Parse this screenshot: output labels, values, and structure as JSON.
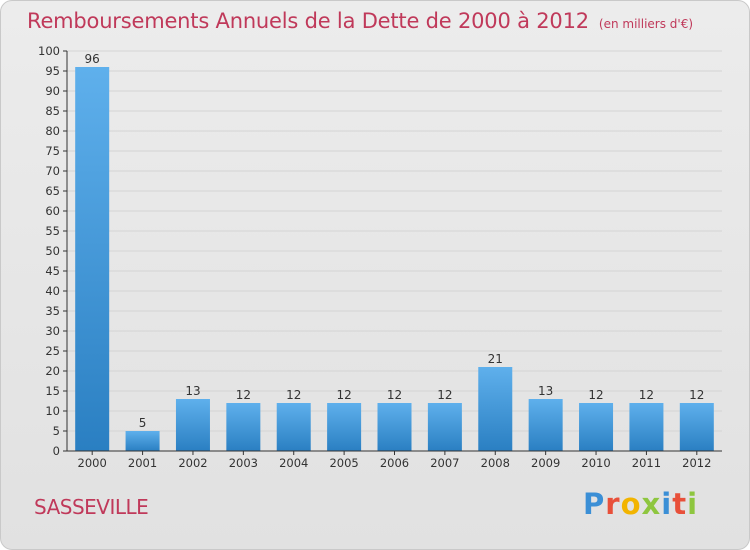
{
  "header": {
    "title": "Remboursements Annuels de la Dette de 2000 à 2012",
    "subtitle": "(en milliers d'€)"
  },
  "footer": {
    "commune": "SASSEVILLE",
    "logo_text": "Proxiti",
    "logo_letters": [
      {
        "char": "P",
        "color": "#3b8fd6"
      },
      {
        "char": "r",
        "color": "#e8503a"
      },
      {
        "char": "o",
        "color": "#f2b400"
      },
      {
        "char": "x",
        "color": "#8ec63f"
      },
      {
        "char": "i",
        "color": "#3b8fd6"
      },
      {
        "char": "t",
        "color": "#e8503a"
      },
      {
        "char": "i",
        "color": "#8ec63f"
      }
    ]
  },
  "colors": {
    "title": "#c0395a",
    "bar_top": "#5fb0ec",
    "bar_bottom": "#2a7fc2",
    "grid": "#d4d4d4",
    "axis": "#333333"
  },
  "chart_data": {
    "type": "bar",
    "title": "Remboursements Annuels de la Dette de 2000 à 2012",
    "subtitle": "(en milliers d'€)",
    "xlabel": "",
    "ylabel": "",
    "categories": [
      "2000",
      "2001",
      "2002",
      "2003",
      "2004",
      "2005",
      "2006",
      "2007",
      "2008",
      "2009",
      "2010",
      "2011",
      "2012"
    ],
    "values": [
      96,
      5,
      13,
      12,
      12,
      12,
      12,
      12,
      21,
      13,
      12,
      12,
      12
    ],
    "ylim": [
      0,
      100
    ],
    "ytick_step": 5,
    "grid": true,
    "show_value_labels": true
  }
}
